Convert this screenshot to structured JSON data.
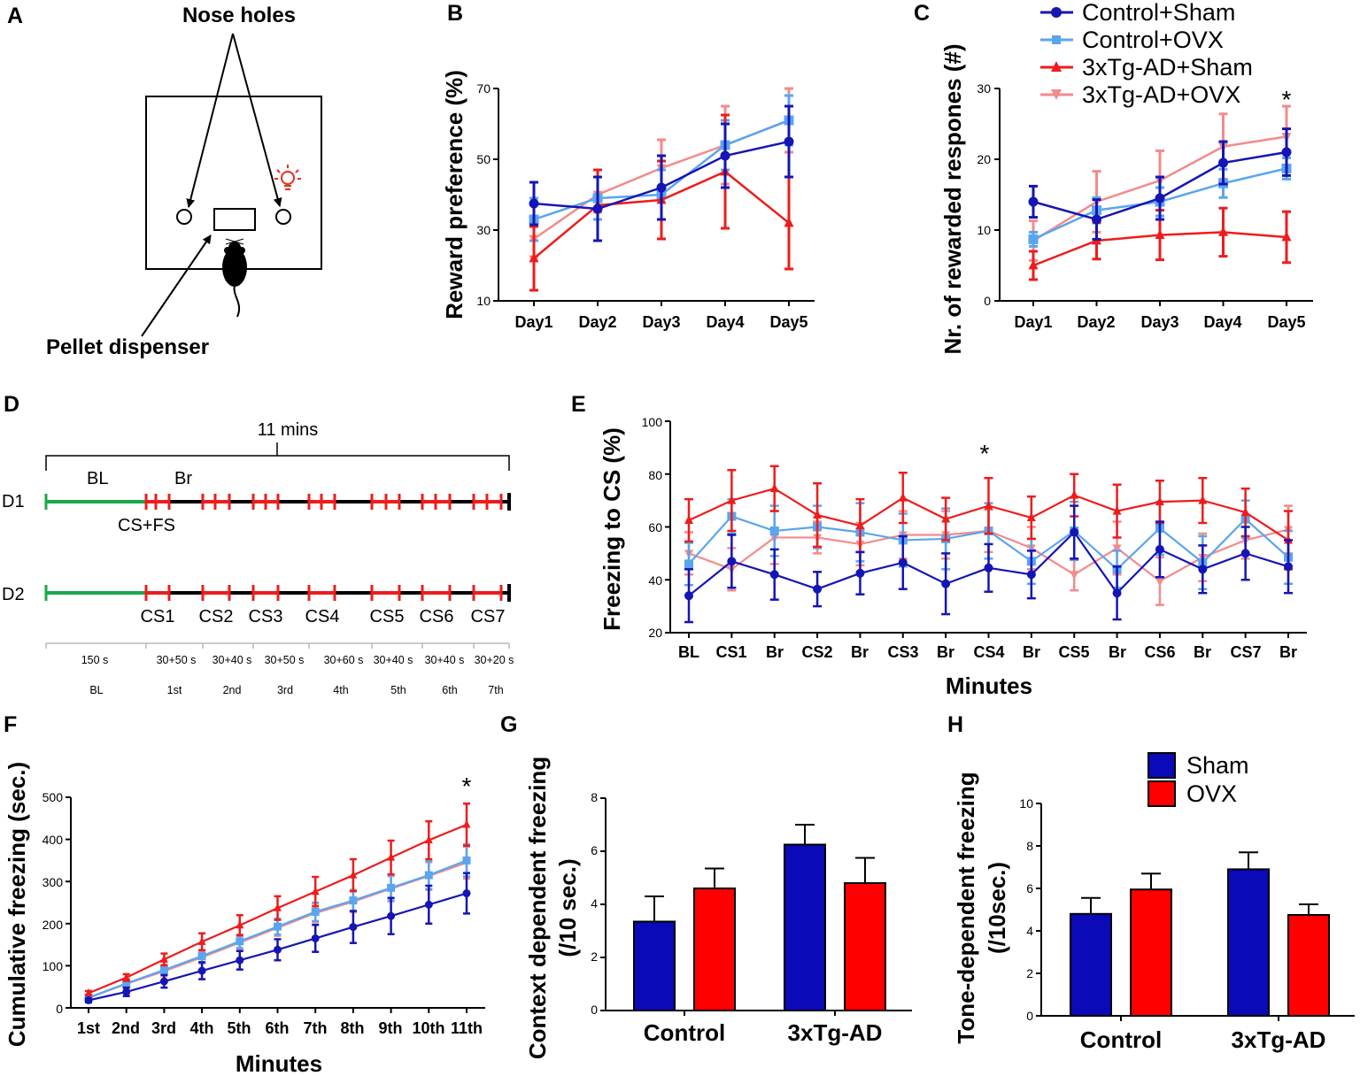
{
  "colors": {
    "control_sham": "#1515b5",
    "control_ovx": "#5aa5ee",
    "tg_sham": "#ee1c1c",
    "tg_ovx": "#f48a8a",
    "bar_sham": "#0a0ab8",
    "bar_ovx": "#ff0000",
    "timeline_green": "#19a84a",
    "timeline_red": "#ee1c1c",
    "bulb": "#ee2a1a"
  },
  "legend_lines": [
    "Control+Sham",
    "Control+OVX",
    "3xTg-AD+Sham",
    "3xTg-AD+OVX"
  ],
  "legend_bars": [
    "Sham",
    "OVX"
  ],
  "panel_a": {
    "label": "A",
    "nose_holes": "Nose holes",
    "pellet_dispenser": "Pellet dispenser",
    "icons": [
      "light-bulb-icon",
      "mouse-icon"
    ]
  },
  "panel_d": {
    "label": "D",
    "duration": "11 mins",
    "row1": "D1",
    "row2": "D2",
    "bl": "BL",
    "br": "Br",
    "csfs": "CS+FS",
    "cs_labels": [
      "CS1",
      "CS2",
      "CS3",
      "CS4",
      "CS5",
      "CS6",
      "CS7"
    ],
    "segment_times": [
      "150 s",
      "30+50 s",
      "30+40 s",
      "30+50 s",
      "30+60 s",
      "30+40 s",
      "30+40 s",
      "30+20 s"
    ],
    "segment_names": [
      "BL",
      "1st",
      "2nd",
      "3rd",
      "4th",
      "5th",
      "6th",
      "7th"
    ]
  },
  "chart_data": [
    {
      "panel": "B",
      "type": "line",
      "categories": [
        "Day1",
        "Day2",
        "Day3",
        "Day4",
        "Day5"
      ],
      "ylabel": "Reward preference (%)",
      "ylim": [
        10,
        70
      ],
      "yticks": [
        "10",
        "30",
        "50",
        "70"
      ],
      "series": [
        {
          "name": "Control+Sham",
          "values": [
            37.5,
            36,
            42,
            51,
            55
          ],
          "err": [
            6,
            9,
            9,
            9,
            10
          ]
        },
        {
          "name": "Control+OVX",
          "values": [
            33,
            39,
            40,
            54,
            61
          ],
          "err": [
            6,
            6,
            7,
            7,
            7
          ]
        },
        {
          "name": "3xTg-AD+Sham",
          "values": [
            22,
            37,
            38.5,
            46.5,
            32
          ],
          "err": [
            9,
            10,
            11,
            16,
            13
          ]
        },
        {
          "name": "3xTg-AD+OVX",
          "values": [
            27.5,
            40,
            47.5,
            54,
            61
          ],
          "err": [
            5,
            5,
            8,
            11,
            9
          ]
        }
      ]
    },
    {
      "panel": "C",
      "type": "line",
      "categories": [
        "Day1",
        "Day2",
        "Day3",
        "Day4",
        "Day5"
      ],
      "ylabel": "Nr. of rewarded respones (#)",
      "ylim": [
        0,
        30
      ],
      "yticks": [
        "0",
        "10",
        "20",
        "30"
      ],
      "annotation": "*",
      "series": [
        {
          "name": "Control+Sham",
          "values": [
            14,
            11.5,
            14.5,
            19.5,
            21
          ],
          "err": [
            2.2,
            2.8,
            3,
            3,
            3.3
          ]
        },
        {
          "name": "Control+OVX",
          "values": [
            8.7,
            12.8,
            14,
            16.6,
            18.7
          ],
          "err": [
            1,
            1.8,
            2,
            2,
            1.5
          ]
        },
        {
          "name": "3xTg-AD+Sham",
          "values": [
            5,
            8.5,
            9.3,
            9.7,
            9
          ],
          "err": [
            2,
            2.6,
            3.5,
            3.4,
            3.6
          ]
        },
        {
          "name": "3xTg-AD+OVX",
          "values": [
            8.5,
            14,
            17,
            21.8,
            23.2
          ],
          "err": [
            2.8,
            4.3,
            4.2,
            4.6,
            4.3
          ]
        }
      ]
    },
    {
      "panel": "E",
      "type": "line",
      "categories": [
        "BL",
        "CS1",
        "Br",
        "CS2",
        "Br",
        "CS3",
        "Br",
        "CS4",
        "Br",
        "CS5",
        "Br",
        "CS6",
        "Br",
        "CS7",
        "Br"
      ],
      "ylabel": "Freezing to CS (%)",
      "xlabel": "Minutes",
      "ylim": [
        20,
        100
      ],
      "yticks": [
        "20",
        "40",
        "60",
        "80",
        "100"
      ],
      "annotation": "*",
      "series": [
        {
          "name": "Control+Sham",
          "values": [
            34,
            47,
            42,
            36.5,
            42.5,
            46.5,
            38.5,
            44.5,
            42,
            58,
            35,
            51.5,
            44,
            50,
            45
          ],
          "err": [
            10,
            10,
            9.5,
            6.5,
            8,
            10,
            11.5,
            9,
            9,
            10,
            10,
            10.5,
            9,
            10,
            10
          ]
        },
        {
          "name": "Control+OVX",
          "values": [
            46,
            64,
            58.5,
            60,
            58,
            55,
            55.5,
            58.5,
            47,
            58.5,
            44,
            59.5,
            46.5,
            63,
            48.5
          ],
          "err": [
            8,
            6.5,
            9.5,
            8,
            11,
            10,
            11.5,
            10.5,
            8.5,
            11,
            7,
            10,
            10,
            7,
            10
          ]
        },
        {
          "name": "3xTg-AD+Sham",
          "values": [
            62.5,
            70,
            74.5,
            64.5,
            60.5,
            71,
            63,
            68,
            63.5,
            72,
            66,
            69.5,
            70,
            65.5,
            55
          ],
          "err": [
            8,
            11.5,
            8.5,
            12,
            10,
            9.5,
            8,
            10.5,
            8,
            8,
            10,
            8,
            8.5,
            9,
            11
          ]
        },
        {
          "name": "3xTg-AD+OVX",
          "values": [
            50,
            44,
            56,
            56,
            53.5,
            57,
            57,
            58.5,
            52,
            42,
            52,
            39.5,
            48.5,
            55,
            59
          ],
          "err": [
            8,
            8,
            10,
            6,
            8,
            9,
            9,
            8,
            8,
            6,
            10,
            9,
            9,
            7,
            9
          ]
        }
      ]
    },
    {
      "panel": "F",
      "type": "line",
      "categories": [
        "1st",
        "2nd",
        "3rd",
        "4th",
        "5th",
        "6th",
        "7th",
        "8th",
        "9th",
        "10th",
        "11th"
      ],
      "ylabel": "Cumulative freezing (sec.)",
      "xlabel": "Minutes",
      "ylim": [
        0,
        500
      ],
      "yticks": [
        "0",
        "100",
        "200",
        "300",
        "400",
        "500"
      ],
      "annotation": "*",
      "series": [
        {
          "name": "Control+Sham",
          "values": [
            18,
            38,
            63,
            88,
            113,
            138,
            165,
            192,
            218,
            245,
            272
          ],
          "err": [
            5,
            10,
            15,
            20,
            22,
            25,
            32,
            38,
            43,
            45,
            48
          ]
        },
        {
          "name": "Control+OVX",
          "values": [
            24,
            58,
            90,
            123,
            158,
            193,
            228,
            255,
            285,
            315,
            350
          ],
          "err": [
            5,
            9,
            12,
            14,
            16,
            19,
            22,
            25,
            30,
            33,
            38
          ]
        },
        {
          "name": "3xTg-AD+Sham",
          "values": [
            35,
            72,
            115,
            157,
            196,
            237,
            276,
            315,
            357,
            398,
            435
          ],
          "err": [
            5,
            8,
            14,
            20,
            24,
            28,
            35,
            38,
            40,
            45,
            50
          ]
        },
        {
          "name": "3xTg-AD+OVX",
          "values": [
            24,
            57,
            87,
            120,
            155,
            190,
            225,
            252,
            283,
            313,
            345
          ],
          "err": [
            5,
            9,
            12,
            14,
            16,
            19,
            22,
            25,
            30,
            33,
            38
          ]
        }
      ]
    },
    {
      "panel": "G",
      "type": "bar",
      "categories": [
        "Control",
        "3xTg-AD"
      ],
      "ylabel": "Context dependent freezing (/10 sec.)",
      "ylim": [
        0,
        8
      ],
      "yticks": [
        "0",
        "2",
        "4",
        "6",
        "8"
      ],
      "series": [
        {
          "name": "Sham",
          "values": [
            3.35,
            6.25
          ],
          "err": [
            0.95,
            0.75
          ]
        },
        {
          "name": "OVX",
          "values": [
            4.6,
            4.8
          ],
          "err": [
            0.75,
            0.95
          ]
        }
      ]
    },
    {
      "panel": "H",
      "type": "bar",
      "categories": [
        "Control",
        "3xTg-AD"
      ],
      "ylabel": "Tone-dependent freezing (/10sec.)",
      "ylim": [
        0,
        10
      ],
      "yticks": [
        "0",
        "2",
        "4",
        "6",
        "8",
        "10"
      ],
      "series": [
        {
          "name": "Sham",
          "values": [
            4.8,
            6.9
          ],
          "err": [
            0.75,
            0.8
          ]
        },
        {
          "name": "OVX",
          "values": [
            5.95,
            4.75
          ],
          "err": [
            0.75,
            0.5
          ]
        }
      ]
    }
  ]
}
